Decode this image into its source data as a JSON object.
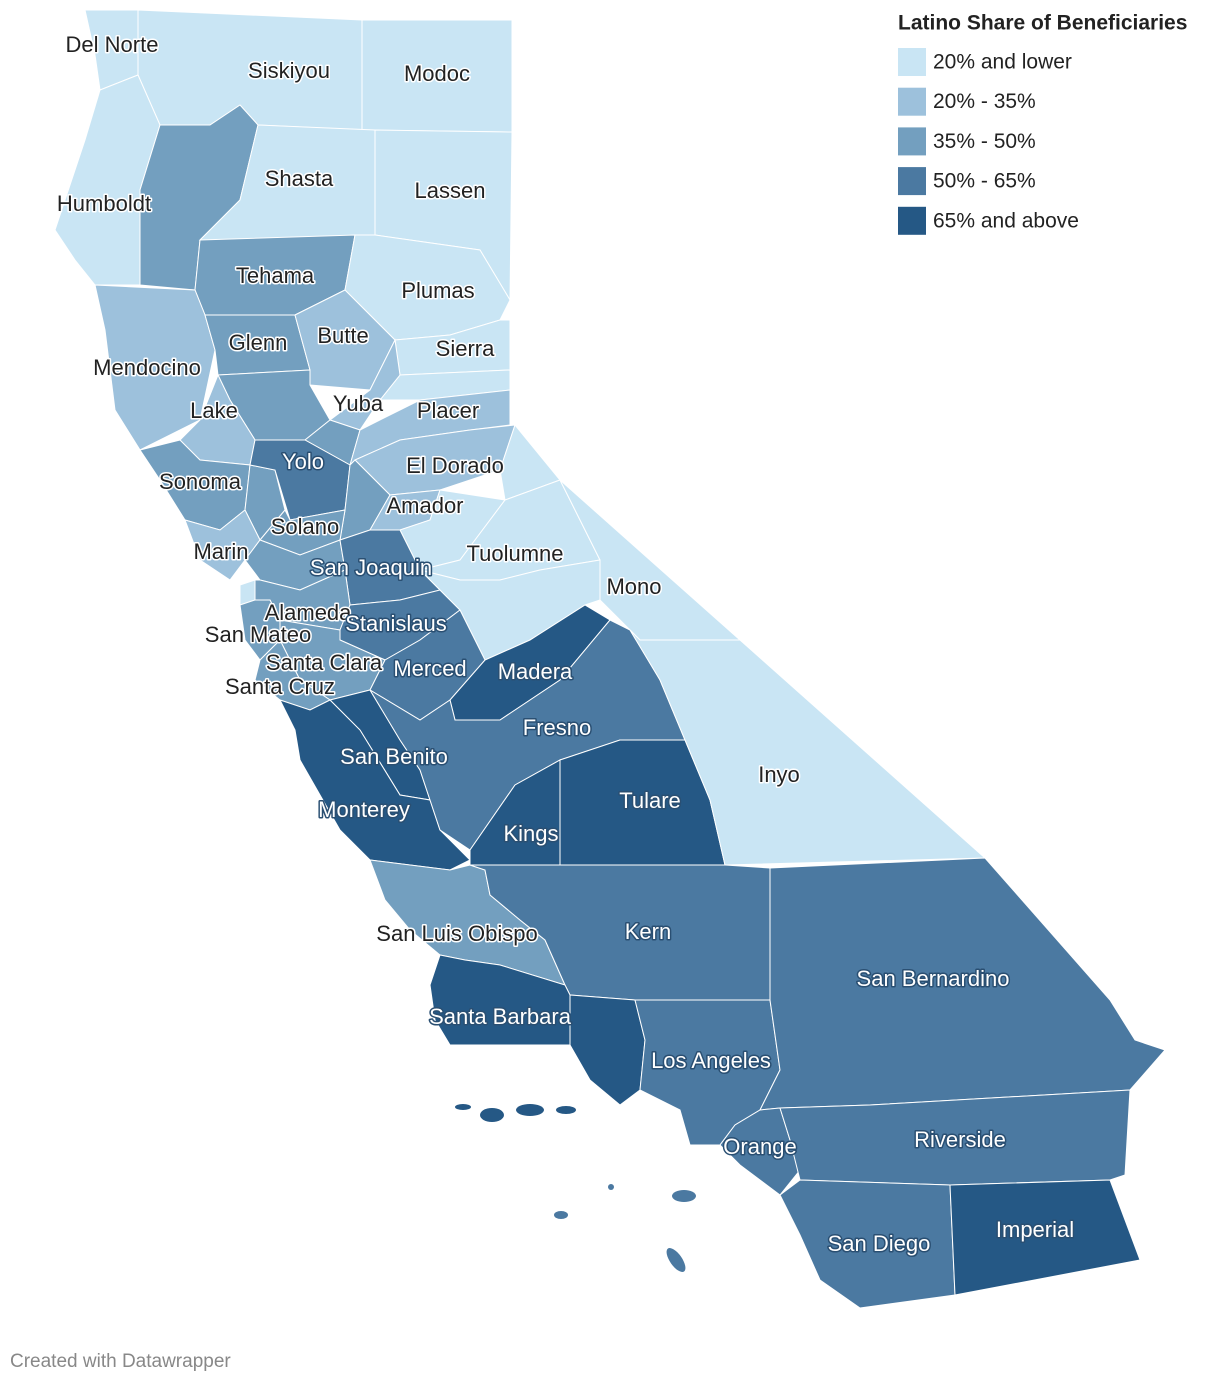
{
  "map": {
    "legend": {
      "title": "Latino Share of Beneficiaries",
      "entries": [
        {
          "label": "20% and lower",
          "color": "#c9e5f4"
        },
        {
          "label": "20% - 35%",
          "color": "#9dc1dc"
        },
        {
          "label": "35% - 50%",
          "color": "#739fbf"
        },
        {
          "label": "50% - 65%",
          "color": "#4b79a1"
        },
        {
          "label": "65% and above",
          "color": "#255885"
        }
      ]
    },
    "counties": [
      {
        "name": "Del Norte",
        "color": "#c9e5f4"
      },
      {
        "name": "Siskiyou",
        "color": "#c9e5f4"
      },
      {
        "name": "Modoc",
        "color": "#c9e5f4"
      },
      {
        "name": "Humboldt",
        "color": "#c9e5f4"
      },
      {
        "name": null,
        "color": "#739fbf"
      },
      {
        "name": "Shasta",
        "color": "#c9e5f4"
      },
      {
        "name": "Lassen",
        "color": "#c9e5f4"
      },
      {
        "name": "Tehama",
        "color": "#739fbf"
      },
      {
        "name": "Plumas",
        "color": "#c9e5f4"
      },
      {
        "name": "Mendocino",
        "color": "#9dc1dc"
      },
      {
        "name": "Glenn",
        "color": "#739fbf"
      },
      {
        "name": "Butte",
        "color": "#9dc1dc"
      },
      {
        "name": "Sierra",
        "color": "#c9e5f4"
      },
      {
        "name": null,
        "color": "#c9e5f4"
      },
      {
        "name": "Yuba",
        "color": "#9dc1dc"
      },
      {
        "name": null,
        "color": "#739fbf"
      },
      {
        "name": "Lake",
        "color": "#9dc1dc"
      },
      {
        "name": null,
        "color": "#739fbf"
      },
      {
        "name": "Placer",
        "color": "#9dc1dc"
      },
      {
        "name": "Sonoma",
        "color": "#739fbf"
      },
      {
        "name": null,
        "color": "#739fbf"
      },
      {
        "name": "Yolo",
        "color": "#4b79a1"
      },
      {
        "name": "El Dorado",
        "color": "#9dc1dc"
      },
      {
        "name": null,
        "color": "#739fbf"
      },
      {
        "name": "Solano",
        "color": "#739fbf"
      },
      {
        "name": "Marin",
        "color": "#9dc1dc"
      },
      {
        "name": "Amador",
        "color": "#9dc1dc"
      },
      {
        "name": null,
        "color": "#c9e5f4"
      },
      {
        "name": null,
        "color": "#c9e5f4"
      },
      {
        "name": null,
        "color": "#739fbf"
      },
      {
        "name": "San Joaquin",
        "color": "#4b79a1"
      },
      {
        "name": "Tuolumne",
        "color": "#c9e5f4"
      },
      {
        "name": "Mono",
        "color": "#c9e5f4"
      },
      {
        "name": null,
        "color": "#c9e5f4"
      },
      {
        "name": "Alameda",
        "color": "#739fbf"
      },
      {
        "name": "San Mateo",
        "color": "#739fbf"
      },
      {
        "name": "Stanislaus",
        "color": "#4b79a1"
      },
      {
        "name": null,
        "color": "#c9e5f4"
      },
      {
        "name": "Santa Clara",
        "color": "#739fbf"
      },
      {
        "name": "Santa Cruz",
        "color": "#739fbf"
      },
      {
        "name": "Merced",
        "color": "#4b79a1"
      },
      {
        "name": "Madera",
        "color": "#255885"
      },
      {
        "name": "San Benito",
        "color": "#255885"
      },
      {
        "name": "Monterey",
        "color": "#255885"
      },
      {
        "name": "Fresno",
        "color": "#4b79a1"
      },
      {
        "name": "Kings",
        "color": "#255885"
      },
      {
        "name": "Tulare",
        "color": "#255885"
      },
      {
        "name": "Inyo",
        "color": "#c9e5f4"
      },
      {
        "name": "San Luis Obispo",
        "color": "#739fbf"
      },
      {
        "name": "Kern",
        "color": "#4b79a1"
      },
      {
        "name": "Santa Barbara",
        "color": "#255885"
      },
      {
        "name": null,
        "color": "#255885"
      },
      {
        "name": "Los Angeles",
        "color": "#4b79a1"
      },
      {
        "name": "San Bernardino",
        "color": "#4b79a1"
      },
      {
        "name": "Orange",
        "color": "#4b79a1"
      },
      {
        "name": "Riverside",
        "color": "#4b79a1"
      },
      {
        "name": "San Diego",
        "color": "#4b79a1"
      },
      {
        "name": "Imperial",
        "color": "#255885"
      }
    ],
    "credit": "Created with Datawrapper"
  }
}
